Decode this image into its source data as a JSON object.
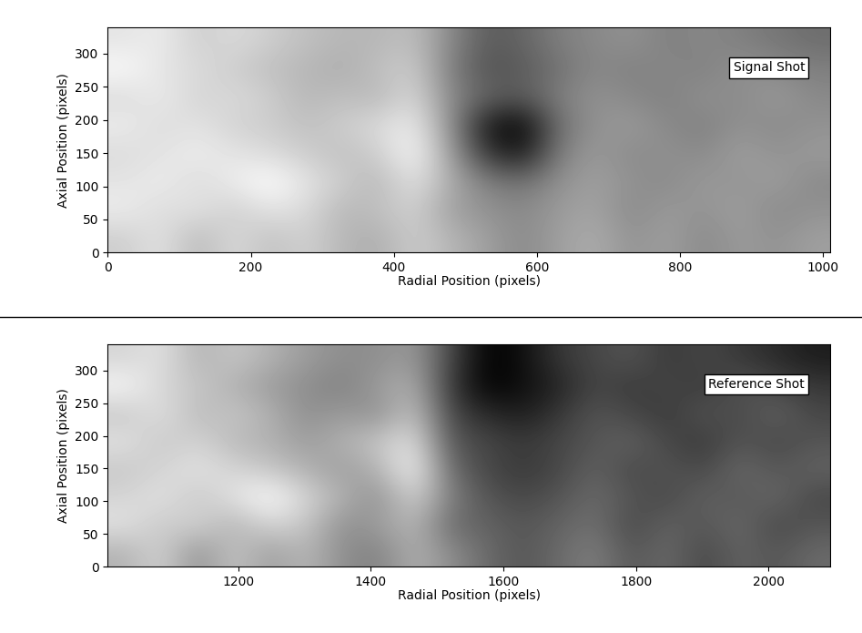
{
  "chart_data": [
    {
      "type": "heatmap",
      "annotation": "Signal Shot",
      "x_label": "Radial Position (pixels)",
      "y_label": "Axial Position (pixels)",
      "xlim": [
        0,
        1010
      ],
      "ylim": [
        0,
        340
      ],
      "xticks": [
        0,
        200,
        400,
        600,
        800,
        1000
      ],
      "yticks": [
        0,
        50,
        100,
        150,
        200,
        250,
        300
      ],
      "color": "gray",
      "cells": [
        [
          55,
          60,
          50,
          58,
          52,
          56,
          50,
          48,
          55,
          50,
          45,
          40,
          45,
          48,
          42,
          45,
          40,
          44,
          42,
          45
        ],
        [
          62,
          58,
          60,
          55,
          60,
          58,
          50,
          52,
          56,
          45,
          42,
          40,
          44,
          46,
          40,
          44,
          42,
          45,
          40,
          42
        ],
        [
          60,
          62,
          58,
          62,
          66,
          60,
          55,
          50,
          60,
          48,
          38,
          35,
          42,
          45,
          42,
          40,
          44,
          42,
          45,
          40
        ],
        [
          58,
          60,
          62,
          60,
          58,
          55,
          52,
          55,
          65,
          45,
          22,
          15,
          38,
          44,
          40,
          42,
          40,
          45,
          42,
          44
        ],
        [
          62,
          58,
          60,
          56,
          55,
          52,
          55,
          58,
          62,
          42,
          15,
          10,
          35,
          42,
          44,
          40,
          38,
          42,
          40,
          42
        ],
        [
          58,
          62,
          56,
          58,
          55,
          50,
          52,
          50,
          58,
          40,
          32,
          30,
          38,
          42,
          40,
          38,
          42,
          40,
          44,
          40
        ],
        [
          65,
          60,
          58,
          55,
          52,
          50,
          48,
          52,
          55,
          38,
          28,
          30,
          35,
          40,
          38,
          40,
          38,
          42,
          40,
          38
        ],
        [
          60,
          62,
          55,
          58,
          55,
          52,
          50,
          50,
          52,
          40,
          30,
          32,
          38,
          40,
          42,
          38,
          40,
          38,
          36,
          34
        ]
      ]
    },
    {
      "type": "heatmap",
      "annotation": "Reference Shot",
      "x_label": "Radial Position (pixels)",
      "y_label": "Axial Position (pixels)",
      "xlim": [
        1003,
        2093
      ],
      "ylim": [
        0,
        340
      ],
      "xticks": [
        1200,
        1400,
        1600,
        1800,
        2000
      ],
      "yticks": [
        0,
        50,
        100,
        150,
        200,
        250,
        300
      ],
      "color": "gray",
      "cells": [
        [
          55,
          60,
          50,
          58,
          52,
          56,
          50,
          48,
          55,
          50,
          45,
          42,
          45,
          48,
          42,
          45,
          40,
          44,
          42,
          45
        ],
        [
          62,
          58,
          60,
          55,
          60,
          58,
          50,
          52,
          56,
          45,
          44,
          42,
          44,
          46,
          40,
          44,
          42,
          45,
          40,
          42
        ],
        [
          60,
          62,
          58,
          62,
          66,
          60,
          55,
          50,
          60,
          48,
          42,
          40,
          42,
          45,
          42,
          40,
          44,
          42,
          45,
          40
        ],
        [
          58,
          60,
          62,
          60,
          58,
          55,
          52,
          55,
          65,
          45,
          40,
          38,
          40,
          44,
          40,
          42,
          40,
          45,
          42,
          44
        ],
        [
          62,
          58,
          60,
          56,
          55,
          52,
          55,
          58,
          62,
          42,
          40,
          38,
          40,
          42,
          44,
          40,
          38,
          42,
          40,
          42
        ],
        [
          58,
          62,
          56,
          58,
          55,
          50,
          52,
          50,
          58,
          40,
          36,
          34,
          38,
          42,
          40,
          38,
          42,
          40,
          44,
          40
        ],
        [
          65,
          60,
          58,
          55,
          52,
          50,
          48,
          52,
          55,
          38,
          30,
          32,
          35,
          40,
          38,
          40,
          38,
          42,
          40,
          38
        ],
        [
          60,
          62,
          55,
          58,
          55,
          52,
          50,
          50,
          52,
          40,
          30,
          32,
          38,
          40,
          42,
          38,
          40,
          38,
          36,
          34
        ]
      ]
    }
  ]
}
